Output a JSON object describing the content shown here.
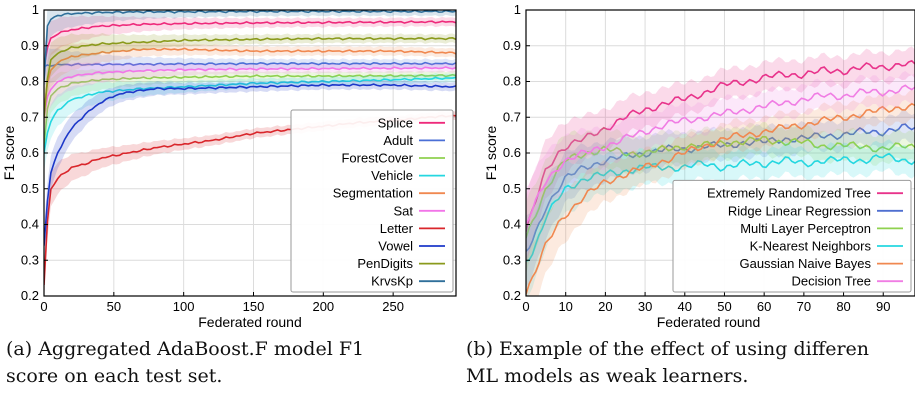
{
  "captions": {
    "a_line1": "(a)  Aggregated AdaBoost.F model F1",
    "a_line2": "score on each test set.",
    "b_line1": "(b) Example of the effect of using differen",
    "b_line2": "ML models as weak learners."
  },
  "chart_data": [
    {
      "type": "line",
      "xlabel": "Federated round",
      "ylabel": "F1 score",
      "xlim": [
        0,
        295
      ],
      "ylim": [
        0.2,
        1.0
      ],
      "xticks": [
        0,
        50,
        100,
        150,
        200,
        250
      ],
      "yticks": [
        0.2,
        0.3,
        0.4,
        0.5,
        0.6,
        0.7,
        0.8,
        0.9,
        1
      ],
      "grid": true,
      "legend": "bottom-right",
      "series": [
        {
          "name": "Splice",
          "color": "#ee2a7b",
          "x": [
            0,
            2,
            5,
            10,
            20,
            40,
            70,
            100,
            150,
            200,
            250,
            295
          ],
          "y": [
            0.84,
            0.89,
            0.92,
            0.935,
            0.945,
            0.955,
            0.96,
            0.962,
            0.964,
            0.965,
            0.966,
            0.967
          ]
        },
        {
          "name": "Adult",
          "color": "#4a6fd6",
          "x": [
            0,
            3,
            10,
            50,
            100,
            150,
            200,
            250,
            295
          ],
          "y": [
            0.84,
            0.845,
            0.847,
            0.848,
            0.849,
            0.85,
            0.85,
            0.85,
            0.85
          ]
        },
        {
          "name": "ForestCover",
          "color": "#8fd14f",
          "x": [
            0,
            2,
            5,
            10,
            20,
            40,
            70,
            100,
            150,
            200,
            250,
            295
          ],
          "y": [
            0.62,
            0.72,
            0.76,
            0.78,
            0.795,
            0.805,
            0.81,
            0.812,
            0.815,
            0.815,
            0.816,
            0.817
          ]
        },
        {
          "name": "Vehicle",
          "color": "#25d7e0",
          "x": [
            0,
            2,
            5,
            10,
            20,
            40,
            70,
            100,
            150,
            200,
            250,
            295
          ],
          "y": [
            0.6,
            0.65,
            0.69,
            0.72,
            0.75,
            0.77,
            0.78,
            0.785,
            0.795,
            0.8,
            0.805,
            0.81
          ]
        },
        {
          "name": "Segmentation",
          "color": "#f08850",
          "x": [
            0,
            2,
            5,
            10,
            20,
            40,
            70,
            100,
            150,
            200,
            250,
            295
          ],
          "y": [
            0.72,
            0.79,
            0.83,
            0.855,
            0.87,
            0.88,
            0.89,
            0.89,
            0.885,
            0.885,
            0.885,
            0.88
          ]
        },
        {
          "name": "Sat",
          "color": "#f275e8",
          "x": [
            0,
            2,
            5,
            10,
            20,
            40,
            70,
            100,
            150,
            200,
            250,
            295
          ],
          "y": [
            0.7,
            0.75,
            0.78,
            0.8,
            0.815,
            0.825,
            0.83,
            0.833,
            0.835,
            0.836,
            0.837,
            0.838
          ]
        },
        {
          "name": "Letter",
          "color": "#d9262b",
          "x": [
            0,
            3,
            5,
            10,
            20,
            30,
            40,
            60,
            80,
            100,
            120,
            150,
            175,
            200,
            225,
            250,
            275,
            295
          ],
          "y": [
            0.23,
            0.45,
            0.5,
            0.53,
            0.56,
            0.57,
            0.585,
            0.6,
            0.615,
            0.625,
            0.635,
            0.655,
            0.665,
            0.675,
            0.685,
            0.69,
            0.7,
            0.705
          ]
        },
        {
          "name": "Vowel",
          "color": "#1d38c9",
          "x": [
            0,
            2,
            5,
            10,
            15,
            20,
            30,
            40,
            50,
            60,
            80,
            100,
            150,
            200,
            250,
            295
          ],
          "y": [
            0.34,
            0.45,
            0.55,
            0.6,
            0.64,
            0.67,
            0.71,
            0.74,
            0.76,
            0.77,
            0.78,
            0.78,
            0.785,
            0.79,
            0.79,
            0.785
          ]
        },
        {
          "name": "PenDigits",
          "color": "#8a9a1c",
          "x": [
            0,
            2,
            5,
            10,
            20,
            40,
            70,
            100,
            150,
            200,
            250,
            295
          ],
          "y": [
            0.7,
            0.8,
            0.86,
            0.88,
            0.895,
            0.905,
            0.91,
            0.915,
            0.918,
            0.92,
            0.92,
            0.92
          ]
        },
        {
          "name": "KrvsKp",
          "color": "#2f6f9a",
          "x": [
            0,
            2,
            5,
            10,
            20,
            40,
            70,
            100,
            150,
            200,
            250,
            295
          ],
          "y": [
            0.8,
            0.95,
            0.975,
            0.985,
            0.99,
            0.993,
            0.995,
            0.995,
            0.996,
            0.996,
            0.996,
            0.996
          ]
        }
      ]
    },
    {
      "type": "line",
      "xlabel": "Federated round",
      "ylabel": "F1 score",
      "xlim": [
        0,
        98
      ],
      "ylim": [
        0.2,
        1.0
      ],
      "xticks": [
        0,
        10,
        20,
        30,
        40,
        50,
        60,
        70,
        80,
        90
      ],
      "yticks": [
        0.2,
        0.3,
        0.4,
        0.5,
        0.6,
        0.7,
        0.8,
        0.9,
        1
      ],
      "grid": true,
      "legend": "bottom-right",
      "series": [
        {
          "name": "Extremely Randomized Tree",
          "color": "#e8338b",
          "x": [
            0,
            2,
            5,
            8,
            10,
            15,
            20,
            25,
            30,
            35,
            40,
            45,
            50,
            55,
            60,
            65,
            70,
            75,
            80,
            85,
            90,
            95,
            98
          ],
          "y": [
            0.38,
            0.45,
            0.55,
            0.6,
            0.62,
            0.64,
            0.67,
            0.7,
            0.72,
            0.74,
            0.75,
            0.77,
            0.79,
            0.8,
            0.81,
            0.82,
            0.82,
            0.83,
            0.83,
            0.84,
            0.84,
            0.85,
            0.845
          ]
        },
        {
          "name": "Ridge Linear Regression",
          "color": "#4f6fd0",
          "x": [
            0,
            2,
            5,
            8,
            10,
            15,
            20,
            25,
            30,
            35,
            40,
            45,
            50,
            55,
            60,
            65,
            70,
            75,
            80,
            85,
            90,
            95,
            98
          ],
          "y": [
            0.32,
            0.36,
            0.45,
            0.5,
            0.53,
            0.56,
            0.58,
            0.59,
            0.6,
            0.61,
            0.61,
            0.62,
            0.62,
            0.63,
            0.63,
            0.64,
            0.64,
            0.65,
            0.65,
            0.66,
            0.66,
            0.67,
            0.67
          ]
        },
        {
          "name": "Multi Layer Perceptron",
          "color": "#8fd14f",
          "x": [
            0,
            2,
            5,
            8,
            10,
            15,
            20,
            25,
            30,
            35,
            40,
            45,
            50,
            55,
            60,
            65,
            70,
            75,
            80,
            85,
            90,
            95,
            98
          ],
          "y": [
            0.36,
            0.42,
            0.5,
            0.55,
            0.58,
            0.6,
            0.61,
            0.6,
            0.6,
            0.61,
            0.62,
            0.62,
            0.63,
            0.63,
            0.64,
            0.63,
            0.63,
            0.62,
            0.62,
            0.62,
            0.61,
            0.62,
            0.62
          ]
        },
        {
          "name": "K-Nearest Neighbors",
          "color": "#25d7e0",
          "x": [
            0,
            2,
            5,
            8,
            10,
            15,
            20,
            25,
            30,
            35,
            40,
            45,
            50,
            55,
            60,
            65,
            70,
            75,
            80,
            85,
            90,
            95,
            98
          ],
          "y": [
            0.3,
            0.33,
            0.42,
            0.47,
            0.5,
            0.53,
            0.54,
            0.55,
            0.56,
            0.56,
            0.56,
            0.57,
            0.56,
            0.57,
            0.57,
            0.58,
            0.57,
            0.58,
            0.58,
            0.58,
            0.59,
            0.58,
            0.58
          ]
        },
        {
          "name": "Gaussian Naive Bayes",
          "color": "#f08850",
          "x": [
            0,
            2,
            5,
            8,
            10,
            15,
            20,
            25,
            30,
            35,
            40,
            45,
            50,
            55,
            60,
            65,
            70,
            75,
            80,
            85,
            90,
            95,
            98
          ],
          "y": [
            0.21,
            0.26,
            0.34,
            0.4,
            0.43,
            0.48,
            0.52,
            0.54,
            0.56,
            0.58,
            0.6,
            0.62,
            0.64,
            0.65,
            0.66,
            0.67,
            0.68,
            0.69,
            0.7,
            0.71,
            0.72,
            0.73,
            0.73
          ]
        },
        {
          "name": "Decision Tree",
          "color": "#f07de4",
          "x": [
            0,
            2,
            5,
            8,
            10,
            15,
            20,
            25,
            30,
            35,
            40,
            45,
            50,
            55,
            60,
            65,
            70,
            75,
            80,
            85,
            90,
            95,
            98
          ],
          "y": [
            0.4,
            0.45,
            0.52,
            0.56,
            0.58,
            0.6,
            0.62,
            0.64,
            0.66,
            0.68,
            0.69,
            0.7,
            0.71,
            0.72,
            0.73,
            0.74,
            0.75,
            0.76,
            0.76,
            0.77,
            0.77,
            0.78,
            0.78
          ]
        }
      ]
    }
  ]
}
